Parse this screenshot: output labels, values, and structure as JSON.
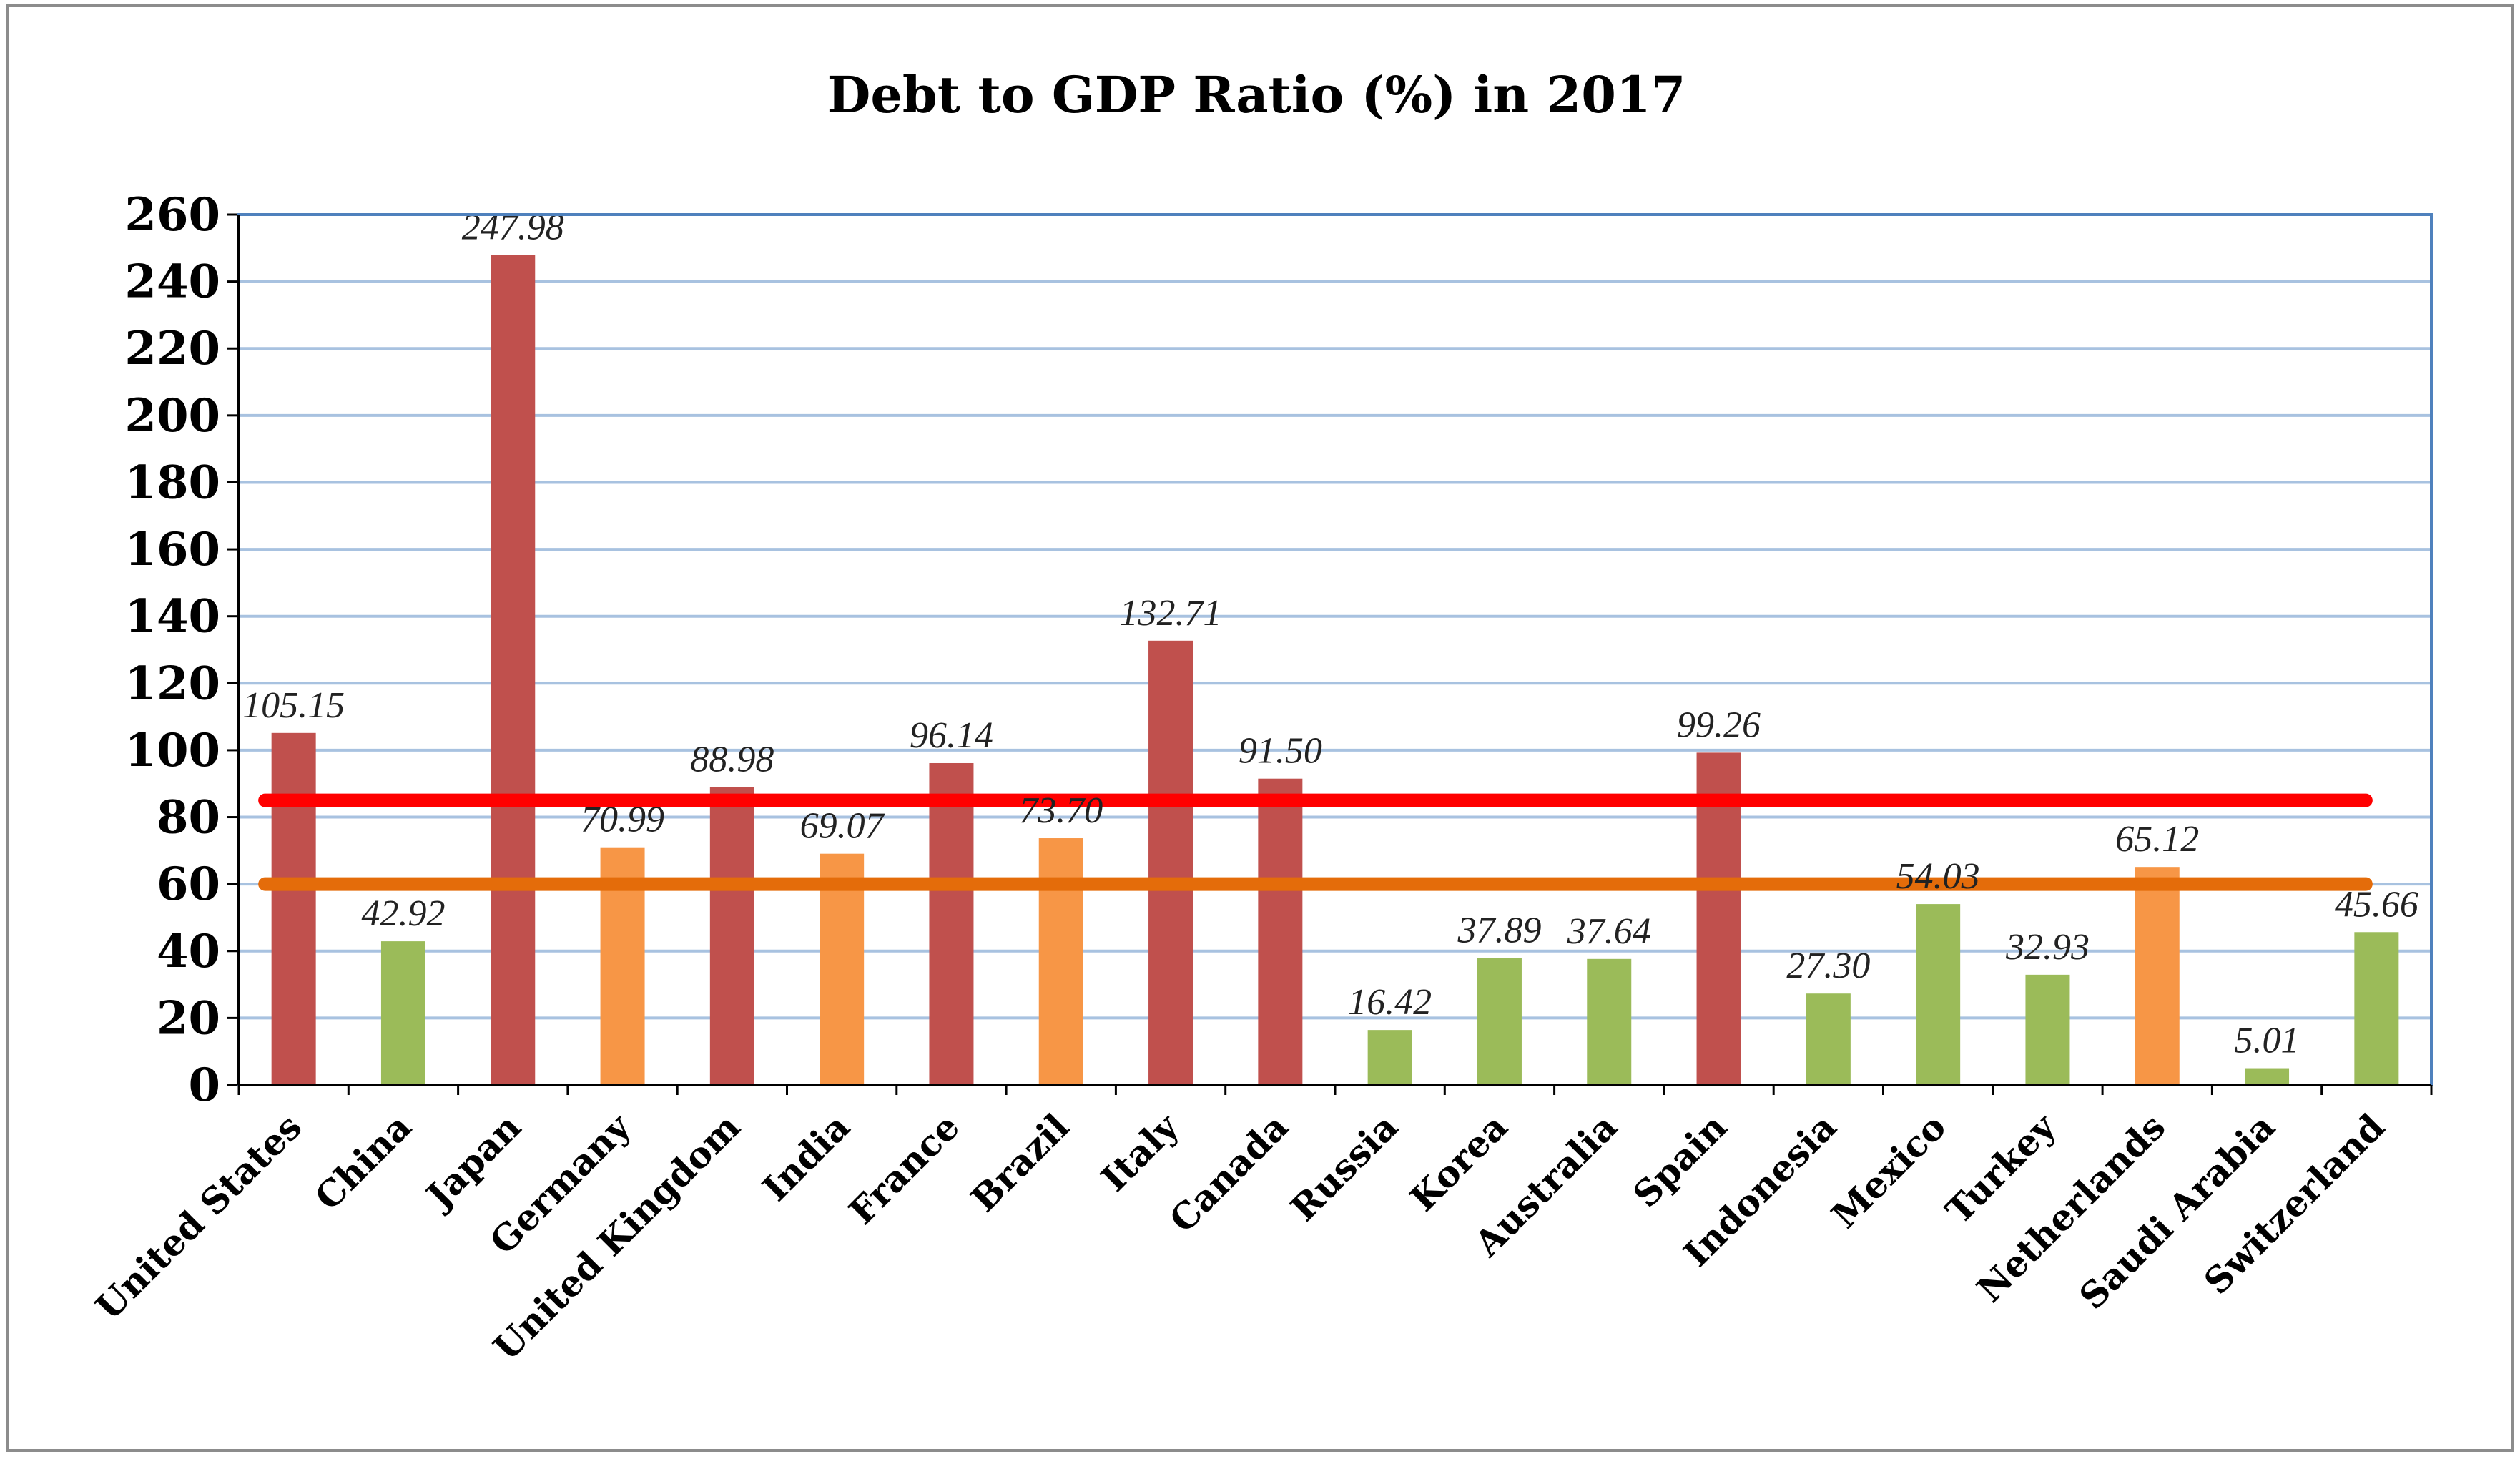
{
  "chart_data": {
    "type": "bar",
    "title": "Debt to GDP Ratio (%) in 2017",
    "xlabel": "",
    "ylabel": "",
    "ylim": [
      0,
      260
    ],
    "yticks": [
      0,
      20,
      40,
      60,
      80,
      100,
      120,
      140,
      160,
      180,
      200,
      220,
      240,
      260
    ],
    "grid": true,
    "categories": [
      "United States",
      "China",
      "Japan",
      "Germany",
      "United Kingdom",
      "India",
      "France",
      "Brazil",
      "Italy",
      "Canada",
      "Russia",
      "Korea",
      "Australia",
      "Spain",
      "Indonesia",
      "Mexico",
      "Turkey",
      "Netherlands",
      "Saudi Arabia",
      "Switzerland"
    ],
    "values": [
      105.15,
      42.92,
      247.98,
      70.99,
      88.98,
      69.07,
      96.14,
      73.7,
      132.71,
      91.5,
      16.42,
      37.89,
      37.64,
      99.26,
      27.3,
      54.03,
      32.93,
      65.12,
      5.01,
      45.66
    ],
    "value_labels": [
      "105.15",
      "42.92",
      "247.98",
      "70.99",
      "88.98",
      "69.07",
      "96.14",
      "73.70",
      "132.71",
      "91.50",
      "16.42",
      "37.89",
      "37.64",
      "99.26",
      "27.30",
      "54.03",
      "32.93",
      "65.12",
      "5.01",
      "45.66"
    ],
    "bar_color_groups": [
      "high",
      "low",
      "high",
      "mid",
      "high",
      "mid",
      "high",
      "mid",
      "high",
      "high",
      "low",
      "low",
      "low",
      "high",
      "low",
      "low",
      "low",
      "mid",
      "low",
      "low"
    ],
    "colors": {
      "high": "#c0504d",
      "mid": "#f79646",
      "low": "#9bbb59",
      "grid": "#a8c2e0",
      "axis_border": "#4f81bd",
      "threshold_high": "#ff0000",
      "threshold_low": "#e46c0a"
    },
    "thresholds": [
      {
        "name": "red-threshold",
        "value": 85,
        "color": "#ff0000"
      },
      {
        "name": "orange-threshold",
        "value": 60,
        "color": "#e46c0a"
      }
    ]
  }
}
